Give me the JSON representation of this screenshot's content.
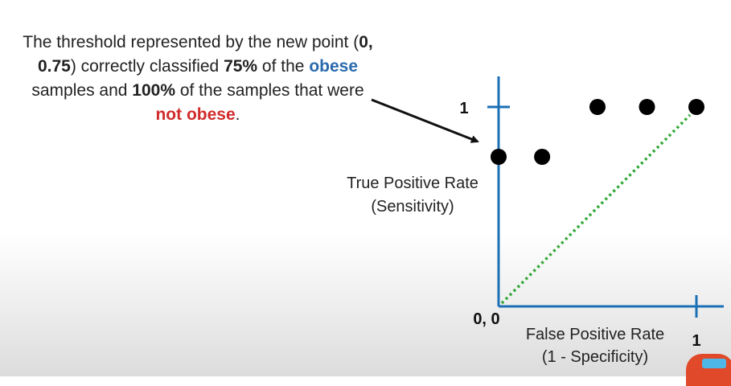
{
  "annotation": {
    "p1": "The threshold represented by the new point (",
    "point": "0, 0.75",
    "p2": ") correctly classified ",
    "pct1": "75%",
    "p3": " of the ",
    "obese": "obese",
    "p4": " samples and ",
    "pct2": "100%",
    "p5": " of the samples that were ",
    "not_obese": "not obese",
    "p6": "."
  },
  "chart_data": {
    "type": "scatter",
    "title": "",
    "xlabel": [
      "False Positive Rate",
      "(1 - Specificity)"
    ],
    "ylabel": [
      "True Positive Rate",
      "(Sensitivity)"
    ],
    "origin_label": "0, 0",
    "x_tick_label": "1",
    "y_tick_label": "1",
    "xlim": [
      0,
      1
    ],
    "ylim": [
      0,
      1
    ],
    "points": [
      {
        "x": 0,
        "y": 0.75
      },
      {
        "x": 0.22,
        "y": 0.75
      },
      {
        "x": 0.5,
        "y": 1
      },
      {
        "x": 0.75,
        "y": 1
      },
      {
        "x": 1,
        "y": 1
      }
    ],
    "reference_line": {
      "from": [
        0,
        0
      ],
      "to": [
        1,
        1
      ],
      "style": "dotted",
      "color": "#2fa833"
    },
    "colors": {
      "axis": "#1a6fb5",
      "points": "#000000"
    },
    "grid": false,
    "legend": "none"
  }
}
